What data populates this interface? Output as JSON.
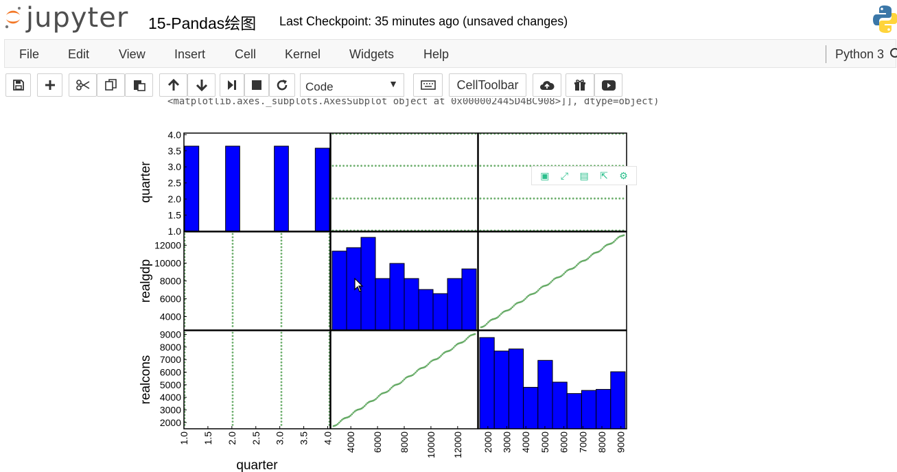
{
  "header": {
    "logo_text": "jupyter",
    "notebook_title": "15-Pandas绘图",
    "checkpoint": "Last Checkpoint: 35 minutes ago (unsaved changes)"
  },
  "menu": {
    "items": [
      "File",
      "Edit",
      "View",
      "Insert",
      "Cell",
      "Kernel",
      "Widgets",
      "Help"
    ],
    "kernel": "Python 3"
  },
  "toolbar": {
    "cell_type": "Code",
    "celltoolbar_label": "CellToolbar",
    "icons": [
      "save-icon",
      "plus-icon",
      "cut-icon",
      "copy-icon",
      "paste-icon",
      "arrow-up-icon",
      "arrow-down-icon",
      "step-forward-icon",
      "stop-icon",
      "restart-icon",
      "keyboard-icon",
      "cloud-upload-icon",
      "gift-icon",
      "youtube-icon"
    ]
  },
  "output": {
    "text_line": "<matplotlib.axes._subplots.AxesSubplot object at 0x000002445D4BC908>]], dtype=object)"
  },
  "chart_data": {
    "type": "scatter_matrix",
    "variables": [
      "quarter",
      "realgdp",
      "realcons"
    ],
    "bar_color": "#0000ff",
    "point_color": "#2e8b2e",
    "ranges": {
      "quarter": [
        1.0,
        4.0
      ],
      "realgdp": [
        2500,
        13500
      ],
      "realcons": [
        1500,
        9300
      ]
    },
    "ticks": {
      "quarter_y": [
        "1.0",
        "1.5",
        "2.0",
        "2.5",
        "3.0",
        "3.5",
        "4.0"
      ],
      "realgdp_y": [
        "4000",
        "6000",
        "8000",
        "10000",
        "12000"
      ],
      "realcons_y": [
        "2000",
        "3000",
        "4000",
        "5000",
        "6000",
        "7000",
        "8000",
        "9000"
      ],
      "quarter_x": [
        "1.0",
        "1.5",
        "2.0",
        "2.5",
        "3.0",
        "3.5",
        "4.0"
      ],
      "realgdp_x": [
        "4000",
        "6000",
        "8000",
        "10000",
        "12000"
      ],
      "realcons_x": [
        "2000",
        "3000",
        "4000",
        "5000",
        "6000",
        "7000",
        "8000",
        "9000"
      ]
    },
    "axis_labels": {
      "left": [
        "quarter",
        "realgdp",
        "realcons"
      ],
      "bottom": [
        "quarter"
      ]
    },
    "hist_quarter": [
      {
        "x": 1,
        "count": 51
      },
      {
        "x": 2,
        "count": 51
      },
      {
        "x": 3,
        "count": 51
      },
      {
        "x": 4,
        "count": 50
      }
    ],
    "hist_realgdp": [
      11.5,
      12.0,
      13.5,
      7.5,
      9.7,
      7.5,
      5.9,
      5.3,
      7.5,
      8.9
    ],
    "hist_realcons": [
      8.8,
      7.5,
      7.7,
      4.0,
      6.6,
      4.5,
      3.4,
      3.7,
      3.8,
      5.5
    ]
  }
}
